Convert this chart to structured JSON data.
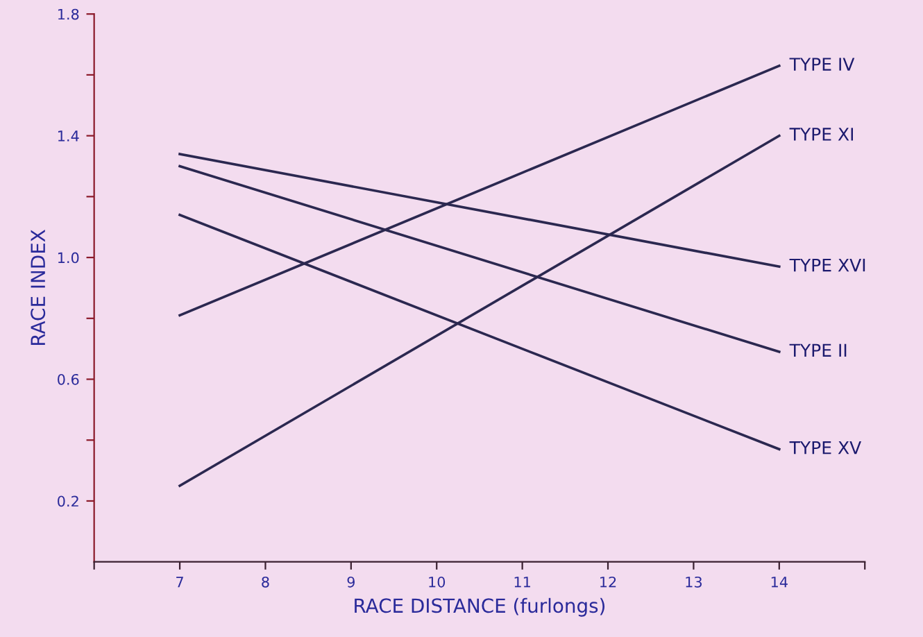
{
  "chart_data": {
    "type": "line",
    "xlabel": "RACE DISTANCE (furlongs)",
    "ylabel": "RACE INDEX",
    "x": [
      7,
      14
    ],
    "series": [
      {
        "name": "TYPE IV",
        "color": "#2b2850",
        "values": [
          0.81,
          1.63
        ]
      },
      {
        "name": "TYPE XI",
        "color": "#2b2850",
        "values": [
          0.25,
          1.4
        ]
      },
      {
        "name": "TYPE XVI",
        "color": "#2b2850",
        "values": [
          1.34,
          0.97
        ]
      },
      {
        "name": "TYPE II",
        "color": "#2b2850",
        "values": [
          1.3,
          0.69
        ]
      },
      {
        "name": "TYPE XV",
        "color": "#2b2850",
        "values": [
          1.14,
          0.37
        ]
      }
    ],
    "xlim": [
      6,
      15
    ],
    "xticks": [
      {
        "value": 6,
        "label": null
      },
      7,
      8,
      9,
      10,
      11,
      12,
      13,
      14,
      {
        "value": 15,
        "label": null
      }
    ],
    "ylim": [
      0,
      1.8
    ],
    "yticks": [
      0.2,
      {
        "value": 0.4,
        "label": null
      },
      0.6,
      {
        "value": 0.8,
        "label": null
      },
      {
        "value": 1.0,
        "label": "1.0"
      },
      {
        "value": 1.2,
        "label": null
      },
      1.4,
      {
        "value": 1.6,
        "label": null
      },
      1.8
    ],
    "grid": false,
    "legend": false,
    "marker": "none",
    "line_style": "solid"
  }
}
